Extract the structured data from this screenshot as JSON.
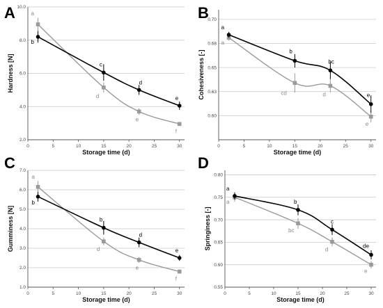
{
  "colors": {
    "black_series": "#000000",
    "gray_series": "#9a9a9a",
    "grid": "#c8c8c8",
    "axis": "#555555"
  },
  "chart_data": [
    {
      "panel": "A",
      "type": "line",
      "xlabel": "Storage time (d)",
      "ylabel": "Hardness [N]",
      "xlim": [
        0,
        31
      ],
      "ylim": [
        2.0,
        10.0
      ],
      "xticks": [
        "0",
        "5",
        "10",
        "15",
        "20",
        "25",
        "30"
      ],
      "yticks": [
        "2.0",
        "4.0",
        "6.0",
        "8.0",
        "10.0"
      ],
      "ytick_values": [
        2.0,
        4.0,
        6.0,
        8.0,
        10.0
      ],
      "grid": "horizontal",
      "series": [
        {
          "color": "black",
          "x": [
            2,
            15,
            22,
            30
          ],
          "y": [
            8.2,
            6.05,
            5.0,
            4.05
          ],
          "err": [
            0.35,
            0.5,
            0.3,
            0.25
          ],
          "labels": [
            "b",
            "c",
            "d",
            "e"
          ]
        },
        {
          "color": "gray",
          "x": [
            2,
            15,
            22,
            30
          ],
          "y": [
            8.95,
            5.15,
            3.7,
            2.95
          ],
          "err": [
            0.4,
            0.3,
            0.2,
            0.1
          ],
          "labels": [
            "a",
            "d",
            "e",
            "f"
          ]
        }
      ]
    },
    {
      "panel": "B",
      "type": "line",
      "xlabel": "Storage time (d)",
      "ylabel": "Cohesiveness [-]",
      "xlim": [
        0,
        31
      ],
      "ylim": [
        0.575,
        0.71
      ],
      "xticks": [
        "0",
        "5",
        "10",
        "15",
        "20",
        "25",
        "30"
      ],
      "yticks": [
        "0.60",
        "0.63",
        "0.65",
        "0.68",
        "0.70"
      ],
      "ytick_values": [
        0.6,
        0.625,
        0.65,
        0.675,
        0.7
      ],
      "grid": "horizontal",
      "series": [
        {
          "color": "black",
          "x": [
            2,
            15,
            22,
            30
          ],
          "y": [
            0.684,
            0.657,
            0.647,
            0.612
          ],
          "err": [
            0.003,
            0.007,
            0.009,
            0.009
          ],
          "labels": [
            "a",
            "b",
            "bc",
            "e"
          ]
        },
        {
          "color": "gray",
          "x": [
            2,
            15,
            22,
            30
          ],
          "y": [
            0.681,
            0.634,
            0.631,
            0.599
          ],
          "err": [
            0.003,
            0.01,
            0.007,
            0.006
          ],
          "labels": [
            "a",
            "cd",
            "d",
            "e"
          ]
        }
      ]
    },
    {
      "panel": "C",
      "type": "line",
      "xlabel": "Storage time (d)",
      "ylabel": "Gumminess [N]",
      "xlim": [
        0,
        31
      ],
      "ylim": [
        1.0,
        7.0
      ],
      "xticks": [
        "0",
        "5",
        "10",
        "15",
        "20",
        "25",
        "30"
      ],
      "yticks": [
        "1.0",
        "2.0",
        "3.0",
        "4.0",
        "5.0",
        "6.0",
        "7.0"
      ],
      "ytick_values": [
        1.0,
        2.0,
        3.0,
        4.0,
        5.0,
        6.0,
        7.0
      ],
      "grid": "horizontal",
      "series": [
        {
          "color": "black",
          "x": [
            2,
            15,
            22,
            30
          ],
          "y": [
            5.65,
            4.05,
            3.3,
            2.5
          ],
          "err": [
            0.25,
            0.35,
            0.25,
            0.15
          ],
          "labels": [
            "b",
            "b",
            "d",
            "e"
          ]
        },
        {
          "color": "gray",
          "x": [
            2,
            15,
            22,
            30
          ],
          "y": [
            6.15,
            3.35,
            2.4,
            1.8
          ],
          "err": [
            0.3,
            0.2,
            0.15,
            0.1
          ],
          "labels": [
            "a",
            "d",
            "e",
            "f"
          ]
        }
      ]
    },
    {
      "panel": "D",
      "type": "line",
      "xlabel": "Storage time (d)",
      "ylabel": "Springiness [-]",
      "xlim": [
        0,
        31
      ],
      "ylim": [
        0.55,
        0.81
      ],
      "xticks": [
        "0",
        "5",
        "10",
        "15",
        "20",
        "25",
        "30"
      ],
      "yticks": [
        "0.55",
        "0.60",
        "0.65",
        "0.70",
        "0.75",
        "0.80"
      ],
      "ytick_values": [
        0.55,
        0.6,
        0.65,
        0.7,
        0.75,
        0.8
      ],
      "grid": "horizontal",
      "series": [
        {
          "color": "black",
          "x": [
            2,
            15,
            22,
            30
          ],
          "y": [
            0.753,
            0.722,
            0.678,
            0.622
          ],
          "err": [
            0.008,
            0.012,
            0.012,
            0.01
          ],
          "labels": [
            "a",
            "b",
            "c",
            "de"
          ]
        },
        {
          "color": "gray",
          "x": [
            2,
            15,
            22,
            30
          ],
          "y": [
            0.75,
            0.692,
            0.651,
            0.6
          ],
          "err": [
            0.01,
            0.012,
            0.01,
            0.008
          ],
          "labels": [
            "a",
            "bc",
            "d",
            "e"
          ]
        }
      ]
    }
  ]
}
